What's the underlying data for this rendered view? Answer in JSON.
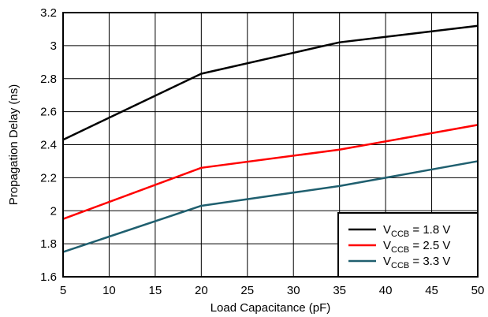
{
  "chart_data": {
    "type": "line",
    "xlabel": "Load Capacitance (pF)",
    "ylabel": "Propagation Delay (ns)",
    "xlim": [
      5,
      50
    ],
    "ylim": [
      1.6,
      3.2
    ],
    "xticks": [
      5,
      10,
      15,
      20,
      25,
      30,
      35,
      40,
      45,
      50
    ],
    "yticks": [
      1.6,
      1.8,
      2,
      2.2,
      2.4,
      2.6,
      2.8,
      3,
      3.2
    ],
    "ytick_labels": [
      "1.6",
      "1.8",
      "2",
      "2.2",
      "2.4",
      "2.6",
      "2.8",
      "3",
      "3.2"
    ],
    "grid": true,
    "legend_position": "bottom-right",
    "series": [
      {
        "name": "V_CCB = 1.8 V",
        "legend": {
          "prefix": "V",
          "sub": "CCB",
          "suffix": " = 1.8 V"
        },
        "color": "#000000",
        "x": [
          5,
          20,
          35,
          50
        ],
        "y": [
          2.43,
          2.83,
          3.02,
          3.12
        ]
      },
      {
        "name": "V_CCB = 2.5 V",
        "legend": {
          "prefix": "V",
          "sub": "CCB",
          "suffix": " = 2.5 V"
        },
        "color": "#ff0000",
        "x": [
          5,
          20,
          35,
          50
        ],
        "y": [
          1.95,
          2.26,
          2.37,
          2.52
        ]
      },
      {
        "name": "V_CCB = 3.3 V",
        "legend": {
          "prefix": "V",
          "sub": "CCB",
          "suffix": " = 3.3 V"
        },
        "color": "#1f5f6f",
        "x": [
          5,
          20,
          35,
          50
        ],
        "y": [
          1.75,
          2.03,
          2.15,
          2.3
        ]
      }
    ]
  }
}
